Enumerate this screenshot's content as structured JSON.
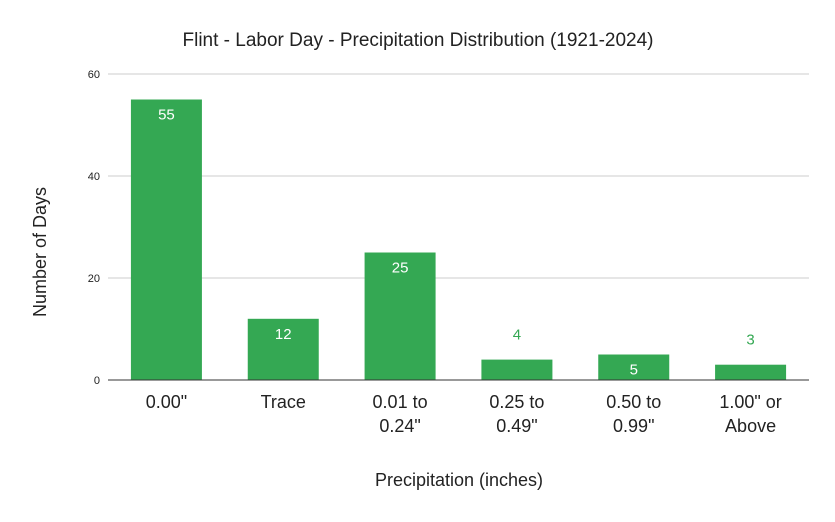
{
  "chart_data": {
    "type": "bar",
    "title": "Flint - Labor Day - Precipitation Distribution (1921-2024)",
    "xlabel": "Precipitation (inches)",
    "ylabel": "Number of Days",
    "categories": [
      [
        "0.00\""
      ],
      [
        "Trace"
      ],
      [
        "0.01 to",
        "0.24\""
      ],
      [
        "0.25 to",
        "0.49\""
      ],
      [
        "0.50 to",
        "0.99\""
      ],
      [
        "1.00\" or",
        "Above"
      ]
    ],
    "values": [
      55,
      12,
      25,
      4,
      5,
      3
    ],
    "value_labels": [
      "55",
      "12",
      "25",
      "4",
      "5",
      "3"
    ],
    "yticks": [
      0,
      20,
      40,
      60
    ],
    "ytick_labels": [
      "0",
      "20",
      "40",
      "60"
    ],
    "ylim": [
      0,
      60
    ],
    "grid": true,
    "legend": "none",
    "colors": {
      "bar": "#34a853",
      "label_inside": "#ffffff",
      "label_outside": "#34a853",
      "grid": "#cccccc",
      "axis": "#333333",
      "text": "#222222"
    }
  }
}
